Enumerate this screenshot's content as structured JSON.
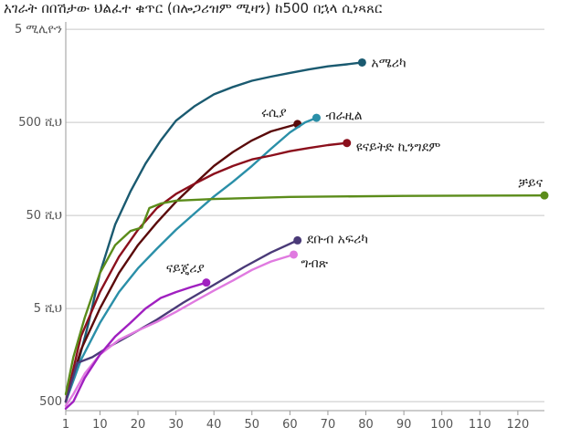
{
  "chart_data": {
    "type": "line",
    "title": "አገራት በበሽታው ህልፈተ ቁጥር (በሎጋሪዝም ሚዛን) ከ500 በኋላ ሲነጻጸር",
    "xlabel": "",
    "ylabel": "",
    "y_scale": "log",
    "xlim": [
      1,
      127
    ],
    "ylim": [
      400,
      6000000
    ],
    "x_ticks": [
      1,
      10,
      20,
      30,
      40,
      50,
      60,
      70,
      80,
      90,
      100,
      110,
      120
    ],
    "x_tick_labels": [
      "1",
      "10",
      "20",
      "30",
      "40",
      "50",
      "60",
      "70",
      "80",
      "90",
      "100",
      "110",
      "120"
    ],
    "y_ticks": [
      500,
      5000,
      50000,
      500000,
      5000000
    ],
    "y_tick_labels": [
      "500",
      "5 ሺህ",
      "50 ሺህ",
      "500 ሺህ",
      "5 ሚሊዮን"
    ],
    "grid": true,
    "legend": "inline labels at line ends",
    "series": [
      {
        "name": "አሜሪካ",
        "color": "#1a5a70",
        "x": [
          1,
          4,
          7,
          10,
          14,
          18,
          22,
          26,
          30,
          35,
          40,
          45,
          50,
          55,
          60,
          65,
          70,
          75,
          79
        ],
        "y": [
          500,
          1200,
          3500,
          12000,
          40000,
          90000,
          180000,
          320000,
          520000,
          750000,
          1000000,
          1200000,
          1400000,
          1550000,
          1700000,
          1850000,
          2000000,
          2100000,
          2200000
        ]
      },
      {
        "name": "ሩሲያ",
        "color": "#5a0a0a",
        "x": [
          1,
          5,
          10,
          15,
          20,
          25,
          30,
          35,
          40,
          45,
          50,
          55,
          62
        ],
        "y": [
          500,
          1800,
          5000,
          12000,
          24000,
          42000,
          70000,
          110000,
          170000,
          240000,
          320000,
          400000,
          480000
        ]
      },
      {
        "name": "ብራዚል",
        "color": "#2a8fa8",
        "x": [
          1,
          5,
          10,
          15,
          20,
          25,
          30,
          35,
          40,
          45,
          50,
          55,
          60,
          64,
          67
        ],
        "y": [
          500,
          1400,
          3500,
          7500,
          13500,
          22000,
          35000,
          53000,
          80000,
          115000,
          170000,
          260000,
          390000,
          500000,
          560000
        ]
      },
      {
        "name": "ዩናይትድ ኪንግደም",
        "color": "#8b0f1c",
        "x": [
          1,
          5,
          10,
          15,
          20,
          25,
          30,
          35,
          40,
          45,
          50,
          55,
          60,
          65,
          70,
          75
        ],
        "y": [
          500,
          2500,
          7500,
          18000,
          35000,
          60000,
          85000,
          110000,
          140000,
          170000,
          200000,
          220000,
          245000,
          265000,
          285000,
          300000
        ]
      },
      {
        "name": "ቻይና",
        "color": "#5b8c1a",
        "x": [
          1,
          3,
          6,
          10,
          14,
          18,
          21,
          23,
          26,
          30,
          40,
          60,
          90,
          127
        ],
        "y": [
          600,
          1500,
          4000,
          12000,
          24000,
          34000,
          37000,
          60000,
          67000,
          72000,
          75000,
          79000,
          81000,
          82000
        ]
      },
      {
        "name": "ደቡብ አፍሪካ",
        "color": "#4a3a78",
        "x": [
          1,
          4,
          8,
          12,
          18,
          25,
          32,
          40,
          48,
          55,
          62
        ],
        "y": [
          500,
          1300,
          1500,
          1900,
          2600,
          3800,
          5800,
          9000,
          14000,
          20000,
          27000
        ]
      },
      {
        "name": "ግብጽ",
        "color": "#e07ae0",
        "x": [
          1,
          3,
          6,
          10,
          15,
          20,
          25,
          30,
          35,
          40,
          45,
          50,
          55,
          61
        ],
        "y": [
          450,
          600,
          1000,
          1600,
          2300,
          2900,
          3600,
          4600,
          6000,
          7800,
          10000,
          13000,
          16000,
          19000
        ]
      },
      {
        "name": "ናይጄሪያ",
        "color": "#a020c0",
        "x": [
          1,
          3,
          6,
          10,
          14,
          18,
          22,
          26,
          30,
          34,
          38
        ],
        "y": [
          420,
          500,
          900,
          1600,
          2500,
          3500,
          5000,
          6500,
          7500,
          8500,
          9500
        ]
      }
    ]
  }
}
